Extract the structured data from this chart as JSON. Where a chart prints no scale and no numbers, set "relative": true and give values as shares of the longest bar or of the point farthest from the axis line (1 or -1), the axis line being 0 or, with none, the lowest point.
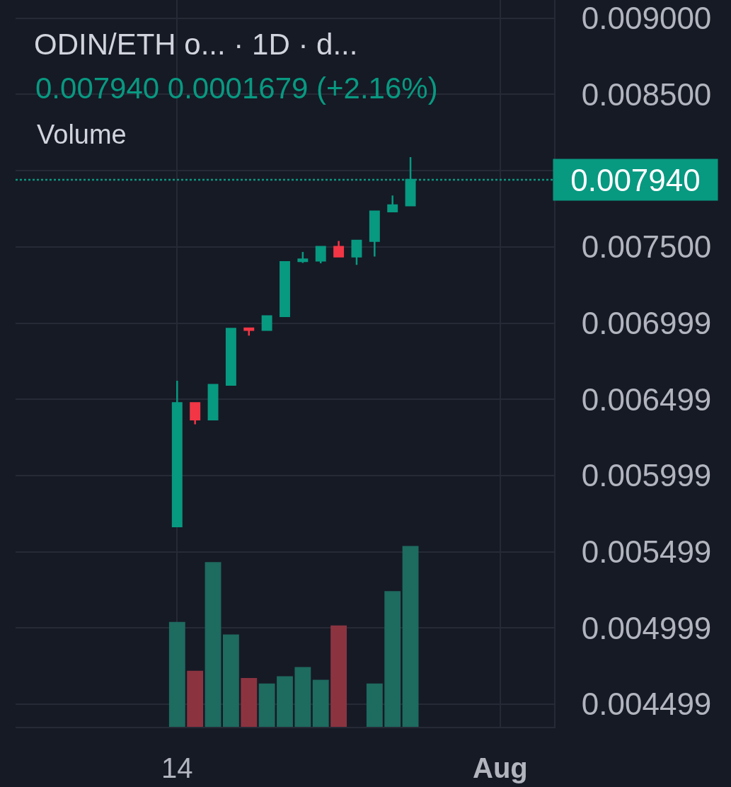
{
  "chart_data": [
    {
      "type": "candlestick",
      "title": "ODIN/ETH o... · 1D · d...",
      "subtitle": "0.007940 0.0001679 (+2.16%)",
      "x": [
        "--07-14",
        "--07-15",
        "--07-16",
        "--07-17",
        "--07-18",
        "--07-19",
        "--07-20",
        "--07-21",
        "--07-22",
        "--07-23",
        "--07-24",
        "--07-25",
        "--07-26",
        "--07-27"
      ],
      "ohlc": [
        [
          0.005666,
          0.006621,
          0.005666,
          0.006475
        ],
        [
          0.006475,
          0.006475,
          0.006336,
          0.006367
        ],
        [
          0.006367,
          0.006594,
          0.006367,
          0.006594
        ],
        [
          0.006594,
          0.006963,
          0.006594,
          0.006963
        ],
        [
          0.006965,
          0.006965,
          0.006917,
          0.006954
        ],
        [
          0.006954,
          0.007045,
          0.006954,
          0.007045
        ],
        [
          0.007045,
          0.0074,
          0.007045,
          0.0074
        ],
        [
          0.007406,
          0.007467,
          0.007394,
          0.007418
        ],
        [
          0.00741,
          0.0075,
          0.007392,
          0.0075
        ],
        [
          0.0075,
          0.007538,
          0.007436,
          0.007436
        ],
        [
          0.007436,
          0.007541,
          0.007382,
          0.007541
        ],
        [
          0.007538,
          0.007732,
          0.007436,
          0.007732
        ],
        [
          0.007732,
          0.007837,
          0.007732,
          0.007773
        ],
        [
          0.007772,
          0.008089,
          0.007772,
          0.00794
        ]
      ],
      "colors": [
        "#089981",
        "#f23645",
        "#089981",
        "#089981",
        "#f23645",
        "#089981",
        "#089981",
        "#089981",
        "#089981",
        "#f23645",
        "#089981",
        "#089981",
        "#089981",
        "#089981"
      ],
      "xlim": [
        "--07-05",
        "--08-04"
      ],
      "xticks": [
        {
          "value": "--07-14",
          "label": "14"
        },
        {
          "value": "--08-01",
          "label": "Aug"
        }
      ],
      "ylim": [
        0.00435,
        0.00912
      ],
      "yticks": [
        {
          "value": 0.009,
          "label": "0.009000"
        },
        {
          "value": 0.0085,
          "label": "0.008500"
        },
        {
          "value": 0.008,
          "label": null
        },
        {
          "value": 0.0075,
          "label": "0.007500"
        },
        0.006999,
        0.006499,
        0.005999,
        0.005499,
        0.004999,
        0.004499
      ],
      "ref_lines": [
        {
          "axis": "y",
          "value": 0.00794,
          "label": "0.007940",
          "color": "#089981",
          "line_style": "dotted"
        }
      ],
      "grid": true
    },
    {
      "type": "bar",
      "title": "Volume",
      "relative": true,
      "tick_labels": false,
      "x": [
        "--07-14",
        "--07-15",
        "--07-16",
        "--07-17",
        "--07-18",
        "--07-19",
        "--07-20",
        "--07-21",
        "--07-22",
        "--07-23",
        "--07-24",
        "--07-25",
        "--07-26",
        "--07-27"
      ],
      "values": [
        0.58,
        0.31,
        0.91,
        0.51,
        0.27,
        0.24,
        0.28,
        0.33,
        0.26,
        0.56,
        null,
        0.24,
        0.75,
        1
      ],
      "colors": [
        "#1e6b60",
        "#8b3440",
        "#1e6b60",
        "#1e6b60",
        "#8b3440",
        "#1e6b60",
        "#1e6b60",
        "#1e6b60",
        "#1e6b60",
        "#8b3440",
        "#1e6b60",
        "#1e6b60",
        "#1e6b60",
        "#1e6b60"
      ],
      "xlim": [
        "--07-05",
        "--08-04"
      ]
    }
  ]
}
